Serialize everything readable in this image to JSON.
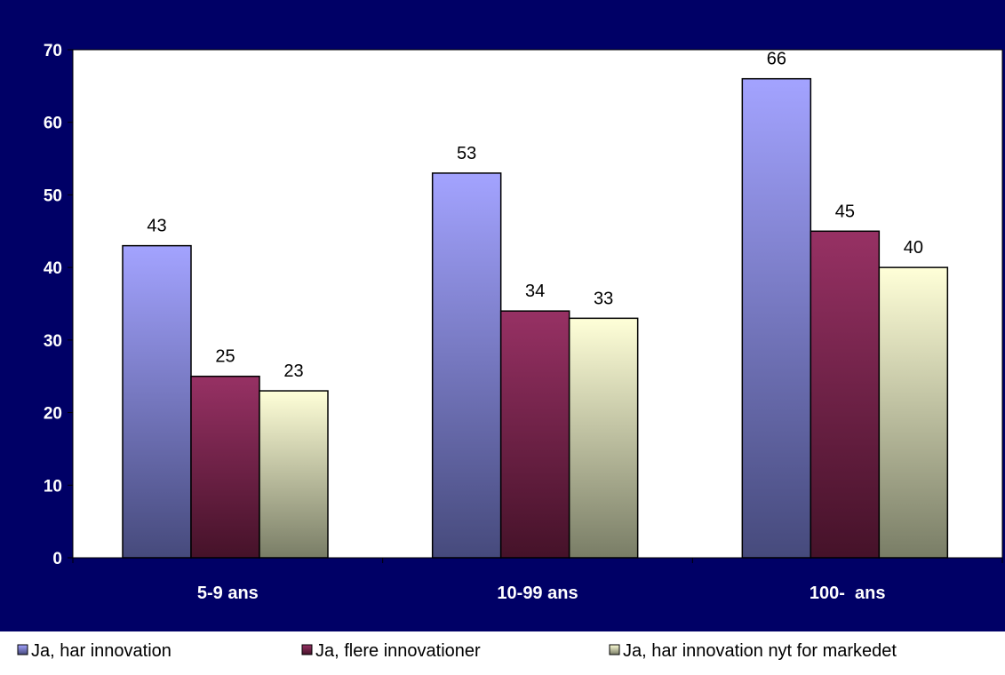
{
  "chart_data": {
    "type": "bar",
    "title": "",
    "xlabel": "",
    "ylabel": "",
    "categories": [
      "5-9 ans",
      "10-99 ans",
      "100-  ans"
    ],
    "series": [
      {
        "name": "Ja, har innovation",
        "values": [
          43,
          53,
          66
        ]
      },
      {
        "name": "Ja, flere innovationer",
        "values": [
          25,
          34,
          45
        ]
      },
      {
        "name": "Ja, har innovation nyt for markedet",
        "values": [
          23,
          33,
          40
        ]
      }
    ],
    "ylim": [
      0,
      70
    ],
    "yticks": [
      0,
      10,
      20,
      30,
      40,
      50,
      60,
      70
    ],
    "grid": false,
    "legend_position": "bottom",
    "data_labels": true
  },
  "colors": {
    "background": "#000066",
    "plot_area": "#ffffff",
    "legend_area": "#ffffff",
    "series": [
      {
        "top": "#a3a3ff",
        "bottom": "#464a7c"
      },
      {
        "top": "#973164",
        "bottom": "#451229"
      },
      {
        "top": "#ffffd8",
        "bottom": "#797d66"
      }
    ]
  }
}
